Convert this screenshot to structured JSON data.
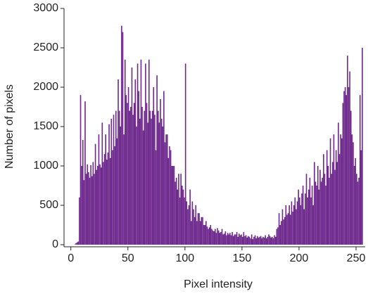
{
  "chart_data": {
    "type": "histogram",
    "x_label": "Pixel intensity",
    "y_label": "Number of pixels",
    "color": "#6f2a8e",
    "bins": [
      0,
      1,
      2,
      3,
      4,
      5,
      6,
      7,
      8,
      9,
      10,
      11,
      12,
      13,
      14,
      15,
      16,
      17,
      18,
      19,
      20,
      21,
      22,
      23,
      24,
      25,
      26,
      27,
      28,
      29,
      30,
      31,
      32,
      33,
      34,
      35,
      36,
      37,
      38,
      39,
      40,
      41,
      42,
      43,
      44,
      45,
      46,
      47,
      48,
      49,
      50,
      51,
      52,
      53,
      54,
      55,
      56,
      57,
      58,
      59,
      60,
      61,
      62,
      63,
      64,
      65,
      66,
      67,
      68,
      69,
      70,
      71,
      72,
      73,
      74,
      75,
      76,
      77,
      78,
      79,
      80,
      81,
      82,
      83,
      84,
      85,
      86,
      87,
      88,
      89,
      90,
      91,
      92,
      93,
      94,
      95,
      96,
      97,
      98,
      99,
      100,
      101,
      102,
      103,
      104,
      105,
      106,
      107,
      108,
      109,
      110,
      111,
      112,
      113,
      114,
      115,
      116,
      117,
      118,
      119,
      120,
      121,
      122,
      123,
      124,
      125,
      126,
      127,
      128,
      129,
      130,
      131,
      132,
      133,
      134,
      135,
      136,
      137,
      138,
      139,
      140,
      141,
      142,
      143,
      144,
      145,
      146,
      147,
      148,
      149,
      150,
      151,
      152,
      153,
      154,
      155,
      156,
      157,
      158,
      159,
      160,
      161,
      162,
      163,
      164,
      165,
      166,
      167,
      168,
      169,
      170,
      171,
      172,
      173,
      174,
      175,
      176,
      177,
      178,
      179,
      180,
      181,
      182,
      183,
      184,
      185,
      186,
      187,
      188,
      189,
      190,
      191,
      192,
      193,
      194,
      195,
      196,
      197,
      198,
      199,
      200,
      201,
      202,
      203,
      204,
      205,
      206,
      207,
      208,
      209,
      210,
      211,
      212,
      213,
      214,
      215,
      216,
      217,
      218,
      219,
      220,
      221,
      222,
      223,
      224,
      225,
      226,
      227,
      228,
      229,
      230,
      231,
      232,
      233,
      234,
      235,
      236,
      237,
      238,
      239,
      240,
      241,
      242,
      243,
      244,
      245,
      246,
      247,
      248,
      249,
      250,
      251,
      252,
      253,
      254,
      255,
      256
    ],
    "counts": [
      0,
      0,
      0,
      5,
      20,
      30,
      40,
      600,
      1900,
      1000,
      1330,
      820,
      1820,
      900,
      1020,
      920,
      850,
      1010,
      870,
      1050,
      900,
      1280,
      950,
      1000,
      1400,
      1020,
      980,
      1550,
      1050,
      1150,
      1400,
      1080,
      1170,
      1530,
      1100,
      1600,
      1200,
      1650,
      1250,
      1700,
      1350,
      2100,
      1700,
      1500,
      2780,
      2700,
      1400,
      2350,
      1900,
      1800,
      2000,
      1700,
      1750,
      2250,
      1650,
      1800,
      2100,
      1500,
      2300,
      1950,
      1600,
      2350,
      1750,
      1450,
      1700,
      2300,
      1800,
      1550,
      2350,
      1700,
      1600,
      1700,
      2000,
      1650,
      1200,
      2150,
      1700,
      1550,
      1850,
      1600,
      1500,
      1950,
      1300,
      1400,
      1400,
      1100,
      1250,
      1200,
      1000,
      1000,
      1000,
      800,
      850,
      700,
      900,
      600,
      900,
      750,
      700,
      600,
      2300,
      550,
      450,
      500,
      700,
      300,
      550,
      450,
      350,
      500,
      300,
      400,
      400,
      300,
      350,
      350,
      250,
      250,
      300,
      230,
      200,
      220,
      250,
      200,
      180,
      170,
      200,
      150,
      210,
      180,
      150,
      160,
      200,
      130,
      140,
      170,
      120,
      150,
      130,
      150,
      120,
      160,
      110,
      130,
      130,
      160,
      100,
      140,
      120,
      130,
      100,
      160,
      110,
      120,
      90,
      110,
      100,
      80,
      130,
      70,
      100,
      120,
      80,
      110,
      90,
      100,
      110,
      80,
      100,
      90,
      120,
      80,
      100,
      130,
      110,
      90,
      100,
      80,
      120,
      100,
      200,
      220,
      400,
      250,
      300,
      450,
      320,
      350,
      500,
      380,
      400,
      500,
      380,
      550,
      420,
      500,
      600,
      450,
      550,
      700,
      600,
      500,
      650,
      750,
      450,
      650,
      900,
      600,
      700,
      850,
      600,
      750,
      500,
      1050,
      800,
      750,
      1000,
      700,
      950,
      800,
      850,
      1150,
      900,
      750,
      1200,
      1000,
      850,
      1350,
      900,
      1050,
      1400,
      950,
      1200,
      1050,
      1550,
      1150,
      1400,
      1350,
      1800,
      1950,
      2000,
      1900,
      2400,
      2000,
      2200,
      1700,
      1400,
      1300,
      1000,
      1100,
      900,
      800,
      850,
      1900,
      1200,
      2500
    ],
    "xlim": [
      -6,
      258
    ],
    "ylim": [
      0,
      3000
    ],
    "xticks": [
      0,
      50,
      100,
      150,
      200,
      250
    ],
    "yticks": [
      0,
      500,
      1000,
      1500,
      2000,
      2500,
      3000
    ]
  }
}
